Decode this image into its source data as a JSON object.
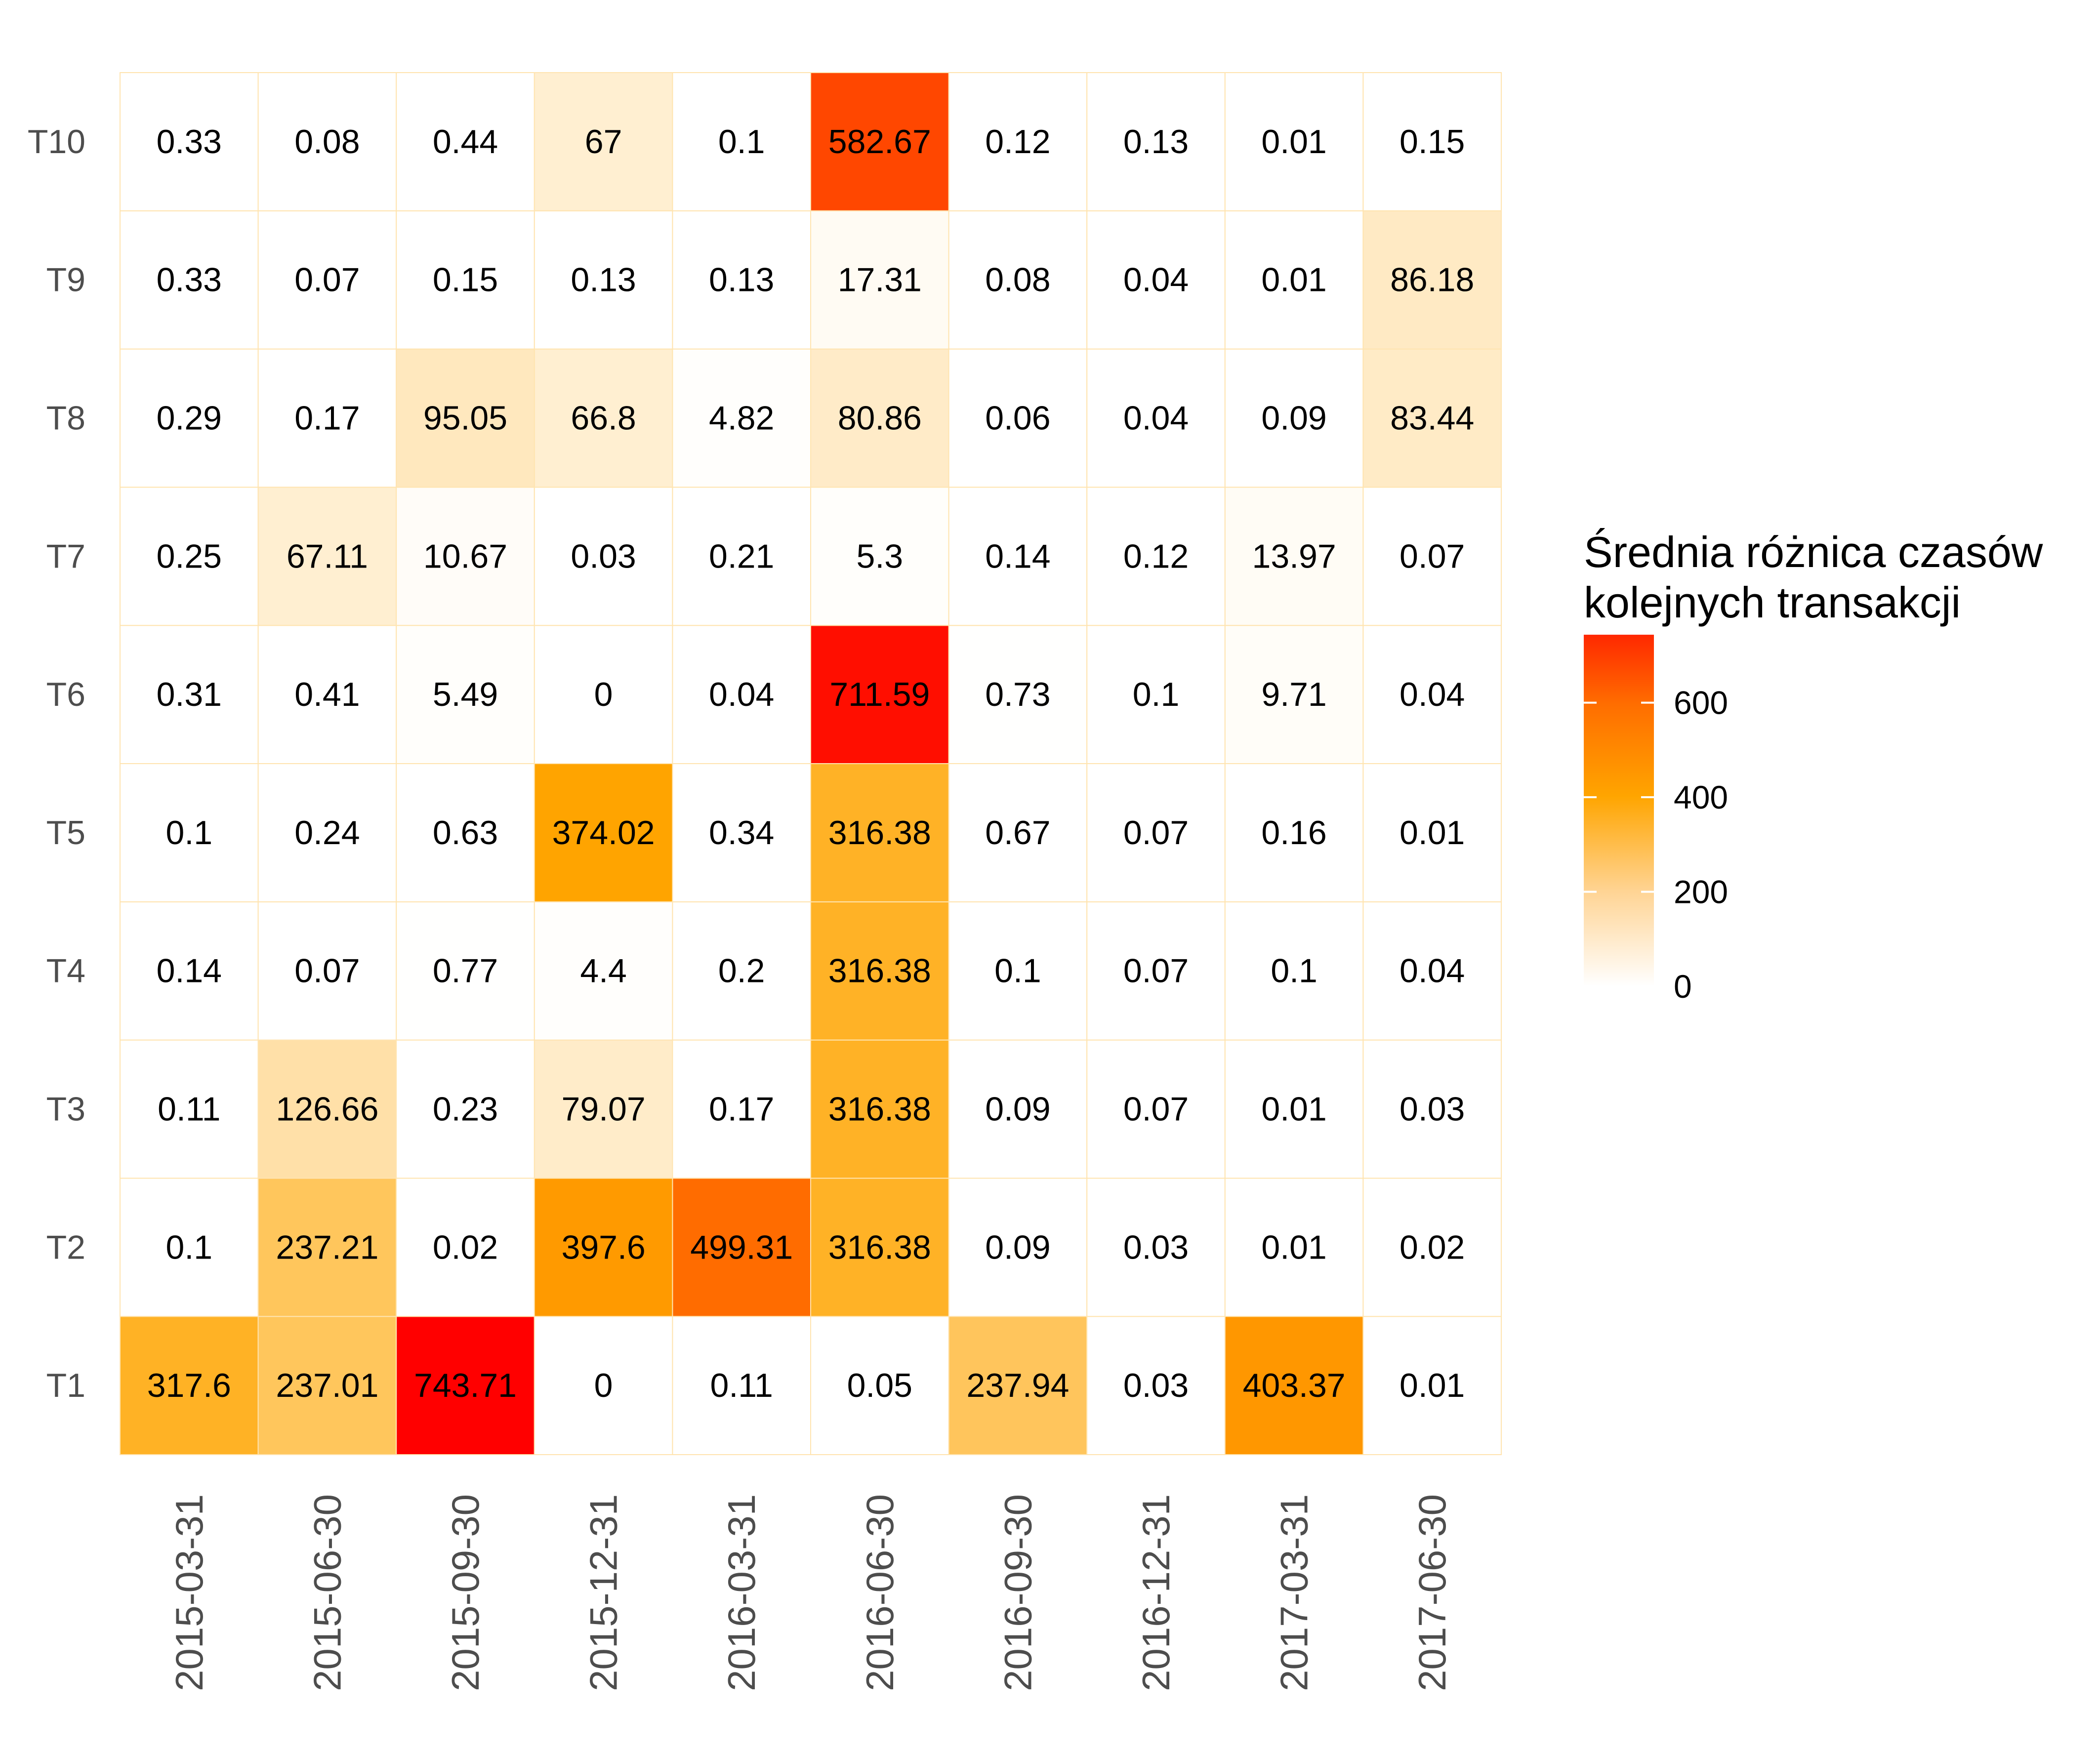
{
  "chart_data": {
    "type": "heatmap",
    "title": "",
    "xlabel": "",
    "ylabel": "",
    "x": [
      "2015-03-31",
      "2015-06-30",
      "2015-09-30",
      "2015-12-31",
      "2016-03-31",
      "2016-06-30",
      "2016-09-30",
      "2016-12-31",
      "2017-03-31",
      "2017-06-30"
    ],
    "y": [
      "T1",
      "T2",
      "T3",
      "T4",
      "T5",
      "T6",
      "T7",
      "T8",
      "T9",
      "T10"
    ],
    "values": [
      [
        "317.6",
        "237.01",
        "743.71",
        "0",
        "0.11",
        "0.05",
        "237.94",
        "0.03",
        "403.37",
        "0.01"
      ],
      [
        "0.1",
        "237.21",
        "0.02",
        "397.6",
        "499.31",
        "316.38",
        "0.09",
        "0.03",
        "0.01",
        "0.02"
      ],
      [
        "0.11",
        "126.66",
        "0.23",
        "79.07",
        "0.17",
        "316.38",
        "0.09",
        "0.07",
        "0.01",
        "0.03"
      ],
      [
        "0.14",
        "0.07",
        "0.77",
        "4.4",
        "0.2",
        "316.38",
        "0.1",
        "0.07",
        "0.1",
        "0.04"
      ],
      [
        "0.1",
        "0.24",
        "0.63",
        "374.02",
        "0.34",
        "316.38",
        "0.67",
        "0.07",
        "0.16",
        "0.01"
      ],
      [
        "0.31",
        "0.41",
        "5.49",
        "0",
        "0.04",
        "711.59",
        "0.73",
        "0.1",
        "9.71",
        "0.04"
      ],
      [
        "0.25",
        "67.11",
        "10.67",
        "0.03",
        "0.21",
        "5.3",
        "0.14",
        "0.12",
        "13.97",
        "0.07"
      ],
      [
        "0.29",
        "0.17",
        "95.05",
        "66.8",
        "4.82",
        "80.86",
        "0.06",
        "0.04",
        "0.09",
        "83.44"
      ],
      [
        "0.33",
        "0.07",
        "0.15",
        "0.13",
        "0.13",
        "17.31",
        "0.08",
        "0.04",
        "0.01",
        "86.18"
      ],
      [
        "0.33",
        "0.08",
        "0.44",
        "67",
        "0.1",
        "582.67",
        "0.12",
        "0.13",
        "0.01",
        "0.15"
      ]
    ],
    "legend": {
      "title": [
        "Średnia różnica czasów",
        "kolejnych transakcji"
      ],
      "ticks": [
        0,
        200,
        400,
        600
      ],
      "range": [
        0,
        743.71
      ],
      "placement": "right"
    },
    "colors": {
      "low": "#ffffff",
      "mid": "#ffa500",
      "high": "#ff0000",
      "tile_border": "#ffe4b0"
    },
    "grid": false
  }
}
